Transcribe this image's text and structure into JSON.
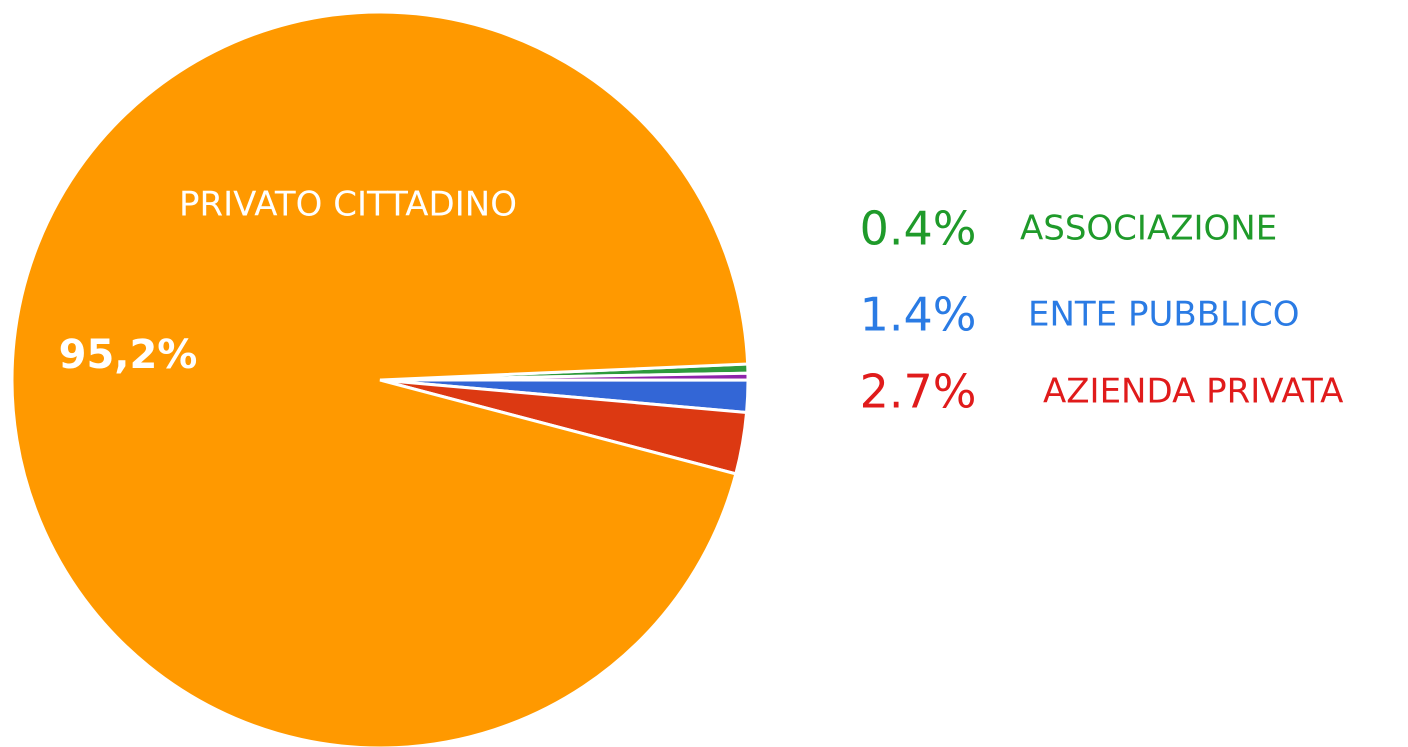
{
  "chart_data": {
    "type": "pie",
    "categories": [
      "ASSOCIAZIONE",
      null,
      "ENTE PUBBLICO",
      "AZIENDA PRIVATA",
      "PRIVATO CITTADINO"
    ],
    "values": [
      0.4,
      0.3,
      1.4,
      2.7,
      95.2
    ],
    "value_labels": [
      "0.4%",
      null,
      "1.4%",
      "2.7%",
      "95,2%"
    ],
    "colors": [
      "#2e9a3c",
      "#8e24aa",
      "#3366d6",
      "#dc3912",
      "#ff9900"
    ],
    "label_colors": [
      "#1f9a2a",
      null,
      "#2a7be4",
      "#e01b1b",
      "#ffffff"
    ]
  }
}
